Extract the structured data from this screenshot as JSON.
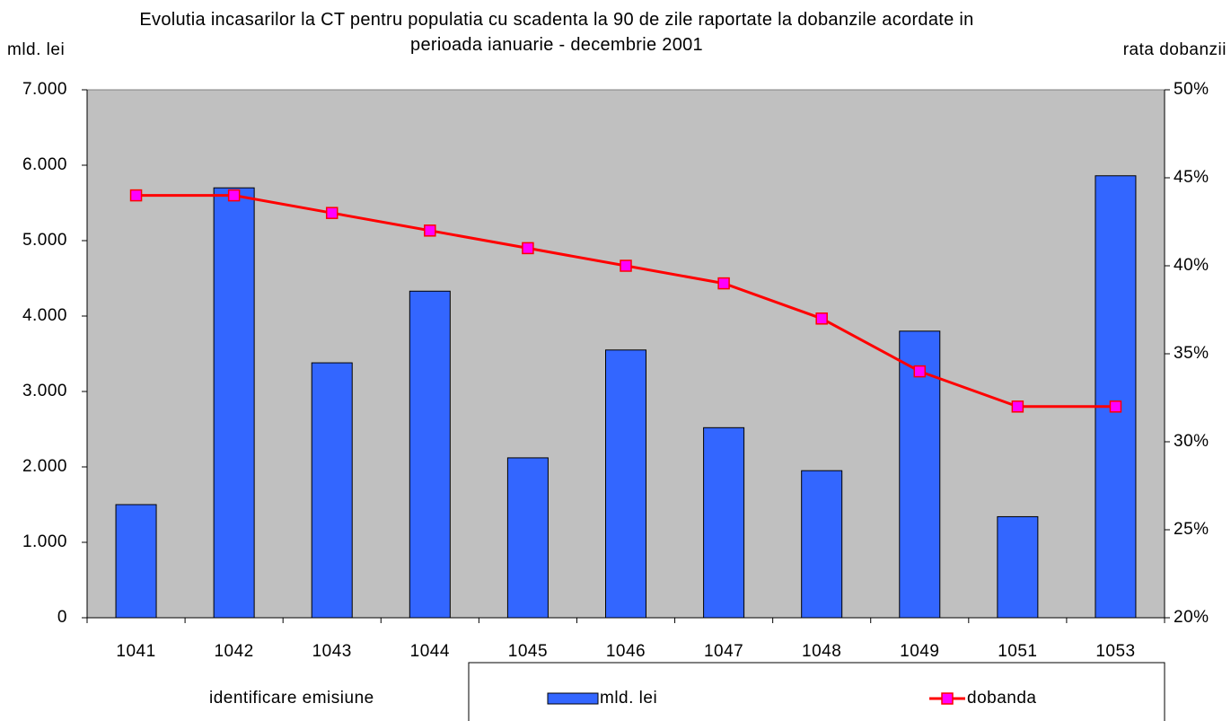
{
  "chart_data": {
    "type": "bar_line",
    "title": "Evolutia incasarilor la CT pentru populatia cu scadenta la 90 de zile raportate la dobanzile acordate in perioada ianuarie - decembrie 2001",
    "y_label": "mld. lei",
    "y2_label": "rata dobanzii",
    "x_label": "identificare emisiune",
    "categories": [
      "1041",
      "1042",
      "1043",
      "1044",
      "1045",
      "1046",
      "1047",
      "1048",
      "1049",
      "1051",
      "1053"
    ],
    "series": [
      {
        "name": "mld. lei",
        "type": "bar",
        "color": "#3366ff",
        "values": [
          1500,
          5700,
          3380,
          4330,
          2120,
          3550,
          2520,
          1950,
          3800,
          1340,
          5860
        ]
      },
      {
        "name": "dobanda",
        "type": "line",
        "color": "#ff0000",
        "marker_color": "#ff00ff",
        "axis": "y2",
        "values": [
          44,
          44,
          43,
          42,
          41,
          40,
          39,
          37,
          34,
          32,
          32
        ]
      }
    ],
    "ylim": [
      0,
      7000
    ],
    "yticks": [
      0,
      {
        "value": 1000,
        "label": "1.000"
      },
      {
        "value": 2000,
        "label": "2.000"
      },
      {
        "value": 3000,
        "label": "3.000"
      },
      {
        "value": 4000,
        "label": "4.000"
      },
      {
        "value": 5000,
        "label": "5.000"
      },
      {
        "value": 6000,
        "label": "6.000"
      },
      {
        "value": 7000,
        "label": "7.000"
      }
    ],
    "y2lim": [
      20,
      50
    ],
    "y2ticks": [
      {
        "value": 20,
        "label": "20%"
      },
      {
        "value": 25,
        "label": "25%"
      },
      {
        "value": 30,
        "label": "30%"
      },
      {
        "value": 35,
        "label": "35%"
      },
      {
        "value": 40,
        "label": "40%"
      },
      {
        "value": 45,
        "label": "45%"
      },
      {
        "value": 50,
        "label": "50%"
      }
    ],
    "plot_background": "#c0c0c0",
    "grid": false,
    "legend": "bottom"
  }
}
